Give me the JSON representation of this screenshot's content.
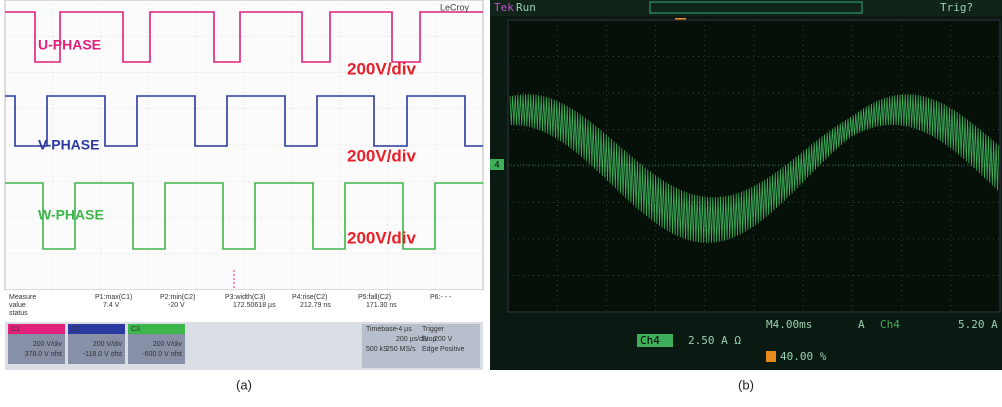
{
  "panel_a": {
    "brand": "LeCroy",
    "phases": [
      "U-PHASE",
      "V-PHASE",
      "W-PHASE"
    ],
    "scales": [
      "200V/div",
      "200V/div",
      "200V/div"
    ],
    "measure": {
      "headers": [
        "Measure",
        "P1:max(C1)",
        "P2:min(C2)",
        "P3:width(C3)",
        "P4:rise(C2)",
        "P5:fall(C2)",
        "P6:- - -"
      ],
      "row_labels": [
        "value",
        "status"
      ],
      "values": [
        "7.4 V",
        "-20 V",
        "172.50618 µs",
        "212.79 ns",
        "171.30 ns"
      ]
    },
    "channels": [
      {
        "name": "C1",
        "scale": "200 V/div",
        "offset": "378.0 V ofst"
      },
      {
        "name": "C2",
        "scale": "200 V/div",
        "offset": "-118.0 V ofst"
      },
      {
        "name": "C3",
        "scale": "200 V/div",
        "offset": "-600.0 V ofst"
      }
    ],
    "timebase": {
      "label": "Timebase",
      "delay": "-4 µs",
      "scale": "200 µs/div",
      "samples": "500 kS",
      "rate": "250 MS/s"
    },
    "trigger": {
      "label": "Trigger",
      "level": "200 V",
      "mode": "Stop",
      "type": "Edge",
      "slope": "Positive"
    },
    "caption": "(a)"
  },
  "panel_b": {
    "brand": "Tek",
    "state": "Run",
    "trigger_state": "Trig?",
    "ground_marker": "4",
    "timebase": "M4.00ms",
    "trigger_channel_prefix": "A",
    "trigger_channel": "Ch4",
    "trigger_level": "5.20 A",
    "channel": "Ch4",
    "channel_scale": "2.50 A Ω",
    "trigger_position": "40.00 %",
    "caption": "(b)"
  }
}
